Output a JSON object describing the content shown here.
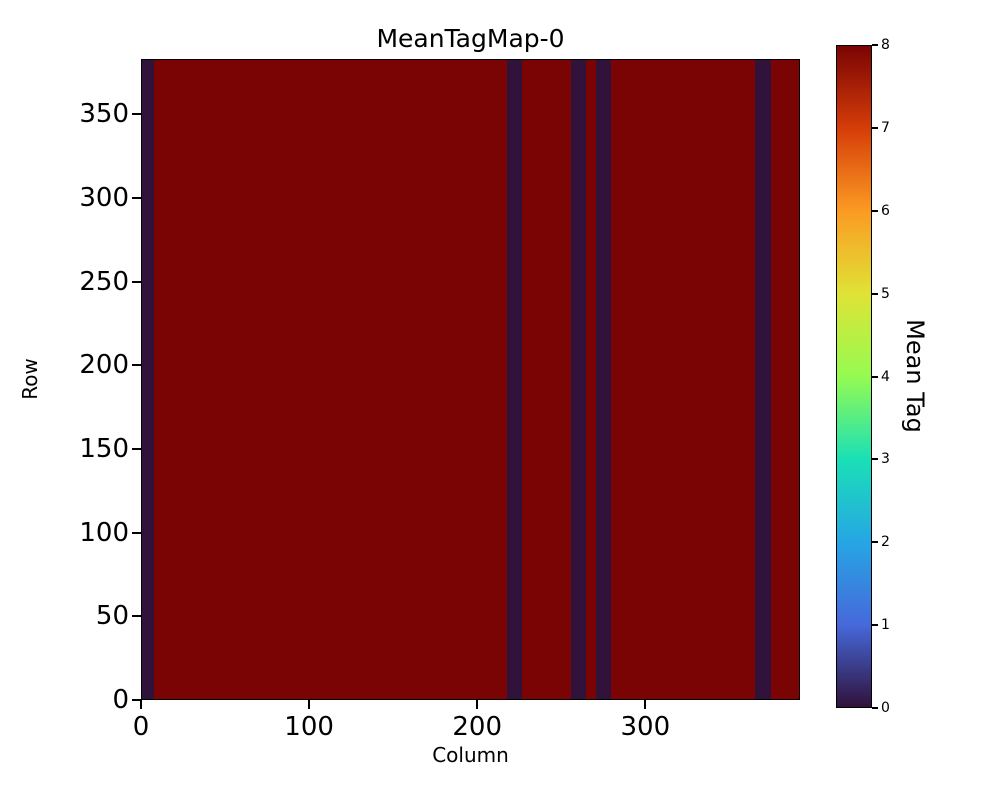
{
  "chart_data": {
    "type": "heatmap",
    "title": "MeanTagMap-0",
    "xlabel": "Column",
    "ylabel": "Row",
    "colorbar_label": "Mean Tag",
    "x_range": [
      0,
      392
    ],
    "y_range": [
      0,
      383
    ],
    "x_ticks": [
      0,
      100,
      200,
      300
    ],
    "y_ticks": [
      0,
      50,
      100,
      150,
      200,
      250,
      300,
      350
    ],
    "background_value": 8,
    "stripe_value": 0,
    "stripes_columns": [
      {
        "start": 0,
        "end": 7
      },
      {
        "start": 218,
        "end": 227
      },
      {
        "start": 256,
        "end": 265
      },
      {
        "start": 271,
        "end": 280
      },
      {
        "start": 366,
        "end": 375
      }
    ],
    "colors": {
      "background": "#7a0403",
      "stripe": "#30123b"
    },
    "colorbar": {
      "range": [
        0,
        8
      ],
      "ticks": [
        0,
        1,
        2,
        3,
        4,
        5,
        6,
        7,
        8
      ],
      "colormap": "turbo",
      "stops": [
        {
          "pos": 0.0,
          "color": "#30123b"
        },
        {
          "pos": 0.125,
          "color": "#4669db"
        },
        {
          "pos": 0.25,
          "color": "#26a6e4"
        },
        {
          "pos": 0.375,
          "color": "#1ae0b6"
        },
        {
          "pos": 0.5,
          "color": "#95fb51"
        },
        {
          "pos": 0.625,
          "color": "#dfe336"
        },
        {
          "pos": 0.75,
          "color": "#fb9b23"
        },
        {
          "pos": 0.875,
          "color": "#d63d09"
        },
        {
          "pos": 1.0,
          "color": "#7a0403"
        }
      ]
    },
    "grid": false,
    "legend": "colorbar-right"
  }
}
